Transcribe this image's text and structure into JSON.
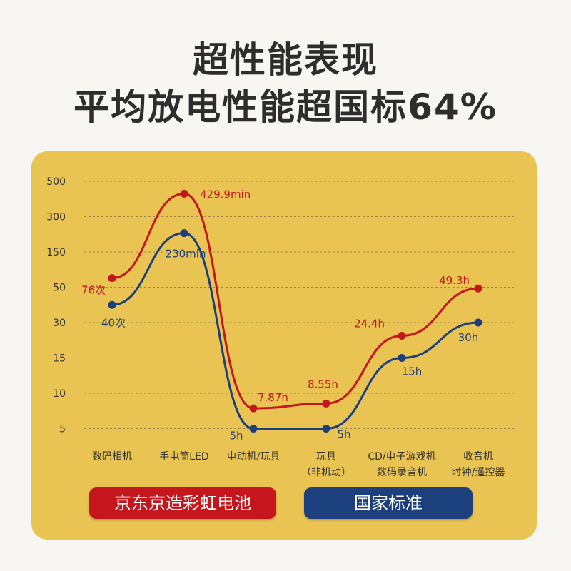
{
  "header": {
    "title": "超性能表现",
    "subtitle": "平均放电性能超国标64%"
  },
  "colors": {
    "jd": "#c4161c",
    "standard": "#1c3f7e",
    "panel": "#e9c452"
  },
  "legend": {
    "jd": "京东京造彩虹电池",
    "standard": "国家标准"
  },
  "chart_data": {
    "type": "line",
    "y_ticks": [
      "500",
      "300",
      "150",
      "50",
      "30",
      "15",
      "10",
      "5"
    ],
    "categories": [
      [
        "数码相机"
      ],
      [
        "手电筒LED"
      ],
      [
        "电动机/玩具"
      ],
      [
        "玩具",
        "（非机动）"
      ],
      [
        "CD/电子游戏机",
        "数码录音机"
      ],
      [
        "收音机",
        "时钟/遥控器"
      ]
    ],
    "series": [
      {
        "name": "京东京造彩虹电池",
        "color": "#c4161c",
        "values": [
          76,
          429.9,
          7.87,
          8.55,
          24.4,
          49.3
        ],
        "labels": [
          "76次",
          "429.9min",
          "7.87h",
          "8.55h",
          "24.4h",
          "49.3h"
        ]
      },
      {
        "name": "国家标准",
        "color": "#1c3f7e",
        "values": [
          40,
          230,
          5,
          5,
          15,
          30
        ],
        "labels": [
          "40次",
          "230min",
          "5h",
          "5h",
          "15h",
          "30h"
        ]
      }
    ],
    "grid": true,
    "grid_style": "dashed",
    "legend_position": "bottom"
  }
}
